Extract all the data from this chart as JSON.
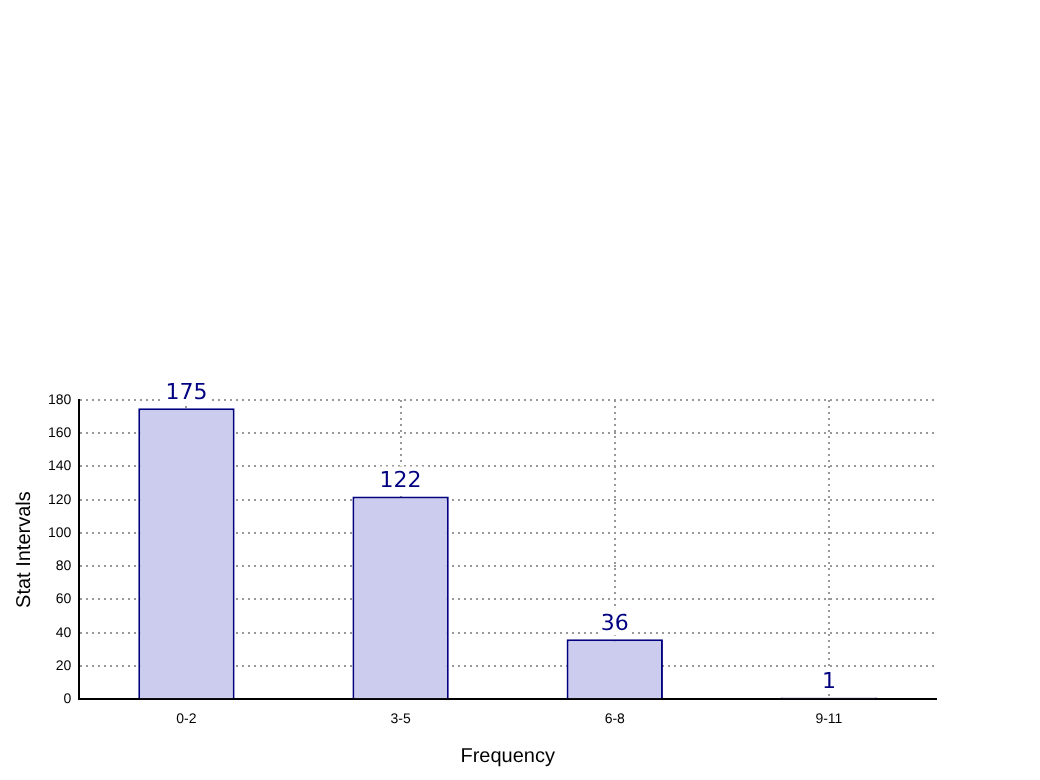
{
  "chart_data": {
    "type": "bar",
    "xlabel": "Frequency",
    "ylabel": "Stat Intervals",
    "categories": [
      "0-2",
      "3-5",
      "6-8",
      "9-11"
    ],
    "values": [
      175,
      122,
      36,
      1
    ],
    "color": "#ccccee",
    "ylim": [
      0,
      180
    ],
    "yticks": [
      0,
      20,
      40,
      60,
      80,
      100,
      120,
      140,
      160,
      180
    ],
    "grid": true,
    "data_labels": true,
    "legend": false
  }
}
